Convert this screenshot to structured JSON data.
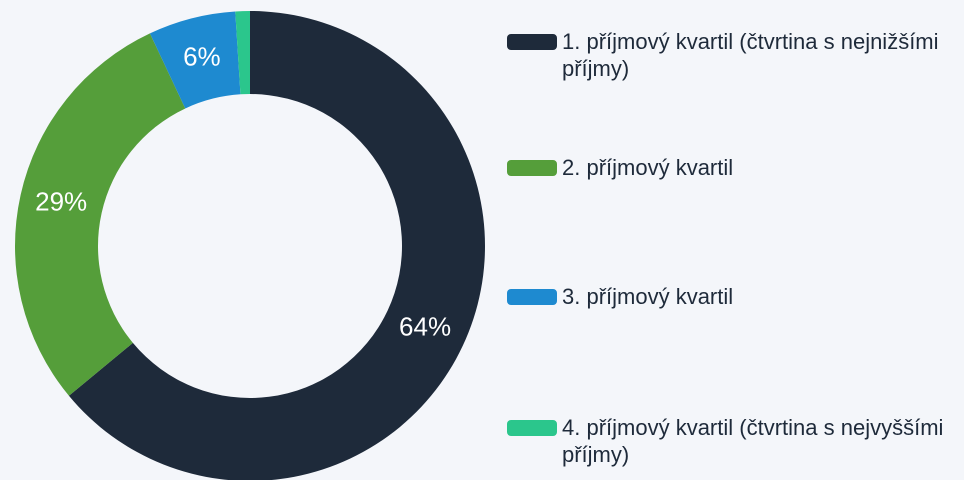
{
  "chart_data": {
    "type": "donut",
    "categories": [
      "1. příjmový kvartil (čtvrtina s nejnižšími příjmy)",
      "2. příjmový kvartil",
      "3. příjmový kvartil",
      "4. příjmový kvartil (čtvrtina s nejvyššími příjmy)"
    ],
    "values": [
      64,
      29,
      6,
      1
    ],
    "value_labels": [
      "64%",
      "29%",
      "6%",
      null
    ],
    "colors": [
      "#1e2a3a",
      "#559e3a",
      "#1e8ad0",
      "#2bc68c"
    ],
    "legend": "right"
  }
}
